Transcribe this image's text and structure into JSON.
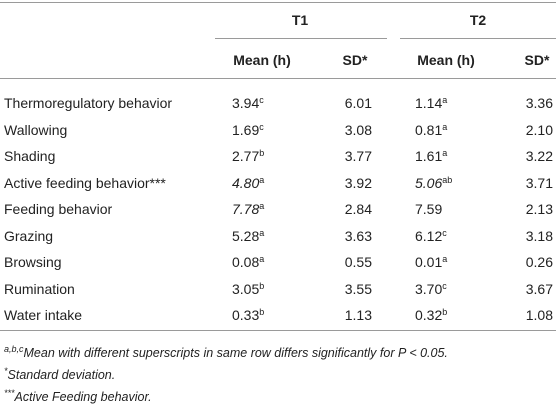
{
  "table": {
    "groups": [
      "T1",
      "T2"
    ],
    "subheaders": [
      "Mean (h)",
      "SD*",
      "Mean (h)",
      "SD*"
    ],
    "rows": [
      {
        "label": "Thermoregulatory behavior",
        "cells": [
          {
            "mean": "3.94",
            "sup": "c"
          },
          "6.01",
          {
            "mean": "1.14",
            "sup": "a"
          },
          "3.36"
        ]
      },
      {
        "label": "Wallowing",
        "cells": [
          {
            "mean": "1.69",
            "sup": "c"
          },
          "3.08",
          {
            "mean": "0.81",
            "sup": "a"
          },
          "2.10"
        ]
      },
      {
        "label": "Shading",
        "cells": [
          {
            "mean": "2.77",
            "sup": "b"
          },
          "3.77",
          {
            "mean": "1.61",
            "sup": "a"
          },
          "3.22"
        ]
      },
      {
        "label": "Active feeding behavior***",
        "cells": [
          {
            "mean": "4.80",
            "sup": "a",
            "italic": true
          },
          "3.92",
          {
            "mean": "5.06",
            "sup": "ab",
            "italic": true
          },
          "3.71"
        ]
      },
      {
        "label": "Feeding behavior",
        "cells": [
          {
            "mean": "7.78",
            "sup": "a",
            "italic": true
          },
          "2.84",
          {
            "mean": "7.59"
          },
          "2.13"
        ]
      },
      {
        "label": "Grazing",
        "cells": [
          {
            "mean": "5.28",
            "sup": "a"
          },
          "3.63",
          {
            "mean": "6.12",
            "sup": "c"
          },
          "3.18"
        ]
      },
      {
        "label": "Browsing",
        "cells": [
          {
            "mean": "0.08",
            "sup": "a"
          },
          "0.55",
          {
            "mean": "0.01",
            "sup": "a"
          },
          "0.26"
        ]
      },
      {
        "label": "Rumination",
        "cells": [
          {
            "mean": "3.05",
            "sup": "b"
          },
          "3.55",
          {
            "mean": "3.70",
            "sup": "c"
          },
          "3.67"
        ]
      },
      {
        "label": "Water intake",
        "cells": [
          {
            "mean": "0.33",
            "sup": "b"
          },
          "1.13",
          {
            "mean": "0.32",
            "sup": "b"
          },
          "1.08"
        ]
      }
    ]
  },
  "footnotes": [
    {
      "mark": "a,b,c",
      "text": "Mean with different superscripts in same row differs significantly for P < 0.05."
    },
    {
      "mark": "*",
      "text": "Standard deviation."
    },
    {
      "mark": "***",
      "text": "Active Feeding behavior."
    }
  ]
}
